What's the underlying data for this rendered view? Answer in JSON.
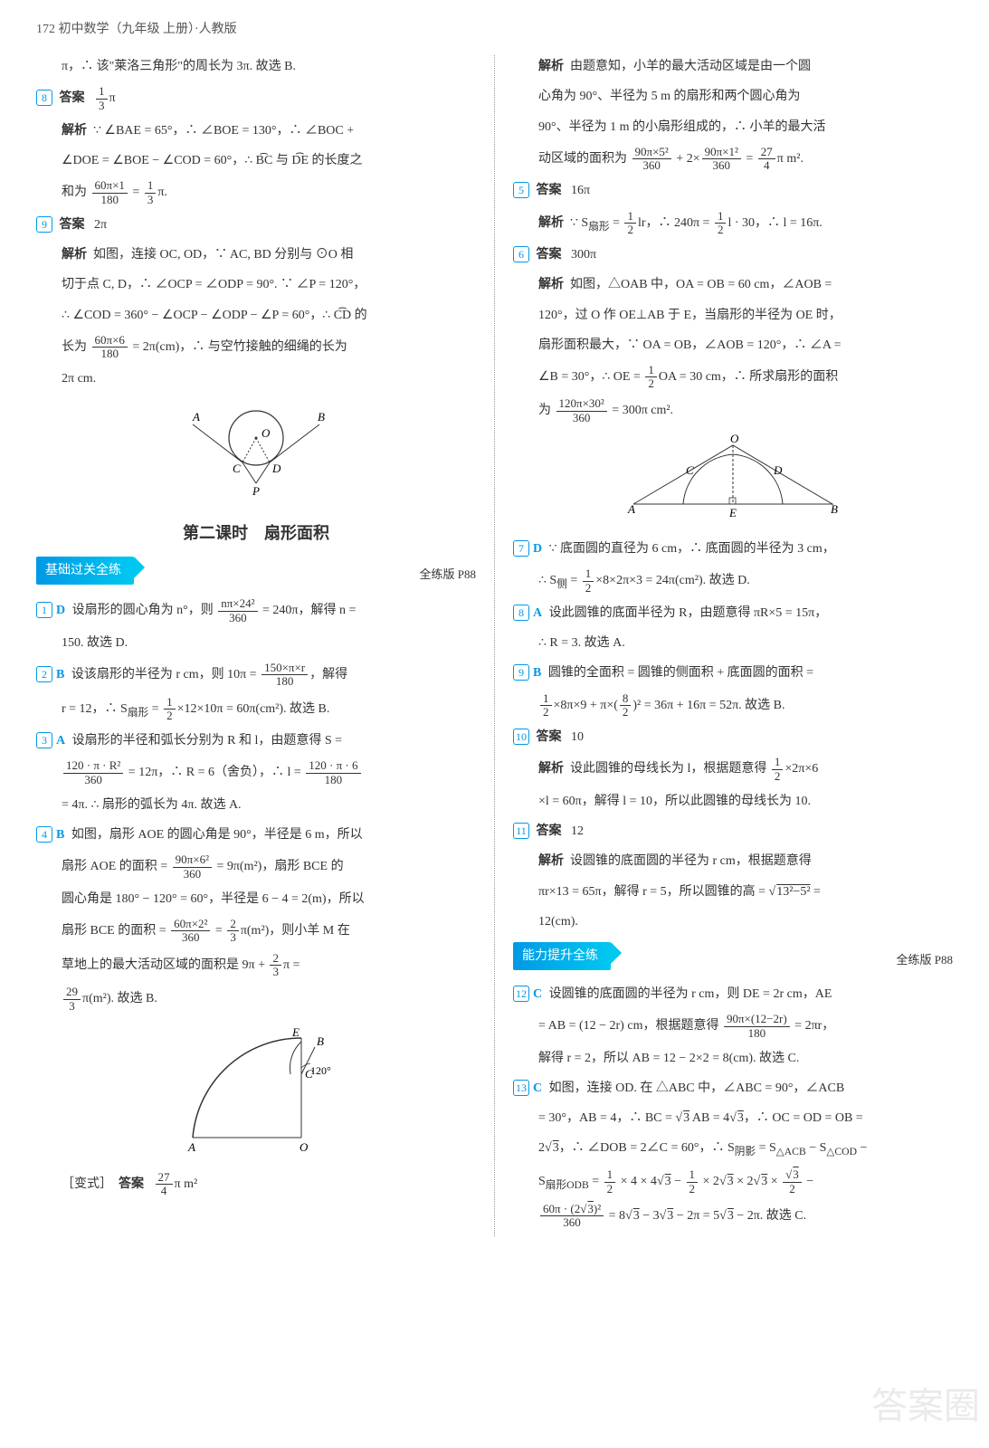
{
  "header": "172 初中数学（九年级 上册）·人教版",
  "colors": {
    "accent": "#0099e5",
    "text": "#333333",
    "banner_gradient_start": "#0099e5",
    "banner_gradient_end": "#00c8f0"
  },
  "left": {
    "intro_line": "π，∴ 该\"莱洛三角形\"的周长为 3π. 故选 B.",
    "q8": {
      "num": "8",
      "ans_label": "答案",
      "ans_value_html": "<span class='frac'><span class='num'>1</span><span class='den'>3</span></span>π",
      "exp_label": "解析",
      "exp_line1": "∵ ∠BAE = 65°，∴ ∠BOE = 130°，∴ ∠BOC +",
      "exp_line2": "∠DOE = ∠BOE − ∠COD = 60°，∴ B͡C 与 D͡E 的长度之",
      "exp_line3_html": "和为 <span class='frac'><span class='num'>60π×1</span><span class='den'>180</span></span> = <span class='frac'><span class='num'>1</span><span class='den'>3</span></span>π."
    },
    "q9": {
      "num": "9",
      "ans_label": "答案",
      "ans_value": "2π",
      "exp_label": "解析",
      "exp_l1": "如图，连接 OC, OD，∵ AC, BD 分别与 ⊙O 相",
      "exp_l2": "切于点 C, D，∴ ∠OCP = ∠ODP = 90°. ∵ ∠P = 120°，",
      "exp_l3": "∴ ∠COD = 360° − ∠OCP − ∠ODP − ∠P = 60°，∴ C͡D 的",
      "exp_l4_html": "长为 <span class='frac'><span class='num'>60π×6</span><span class='den'>180</span></span> = 2π(cm)，∴ 与空竹接触的细绳的长为",
      "exp_l5": "2π cm."
    },
    "fig1": {
      "labels": {
        "A": "A",
        "B": "B",
        "C": "C",
        "D": "D",
        "O": "O",
        "P": "P"
      }
    },
    "section_title": "第二课时　扇形面积",
    "banner1": "基础过关全练",
    "page_ref1": "全练版 P88",
    "q1": {
      "num": "1",
      "choice": "D",
      "l1_html": "设扇形的圆心角为 n°，则 <span class='frac'><span class='num'>nπ×24²</span><span class='den'>360</span></span> = 240π，解得 n =",
      "l2": "150. 故选 D."
    },
    "q2": {
      "num": "2",
      "choice": "B",
      "l1_html": "设该扇形的半径为 r cm，则 10π = <span class='frac'><span class='num'>150×π×r</span><span class='den'>180</span></span>，解得",
      "l2_html": "r = 12，∴ S<sub>扇形</sub> = <span class='frac'><span class='num'>1</span><span class='den'>2</span></span>×12×10π = 60π(cm²). 故选 B."
    },
    "q3": {
      "num": "3",
      "choice": "A",
      "l1": "设扇形的半径和弧长分别为 R 和 l，由题意得 S =",
      "l2_html": "<span class='frac'><span class='num'>120 · π · R²</span><span class='den'>360</span></span> = 12π，∴ R = 6（舍负），∴ l = <span class='frac'><span class='num'>120 · π · 6</span><span class='den'>180</span></span>",
      "l3": "= 4π. ∴ 扇形的弧长为 4π. 故选 A."
    },
    "q4": {
      "num": "4",
      "choice": "B",
      "l1": "如图，扇形 AOE 的圆心角是 90°，半径是 6 m，所以",
      "l2_html": "扇形 AOE 的面积 = <span class='frac'><span class='num'>90π×6²</span><span class='den'>360</span></span> = 9π(m²)，扇形 BCE 的",
      "l3": "圆心角是 180° − 120° = 60°，半径是 6 − 4 = 2(m)，所以",
      "l4_html": "扇形 BCE 的面积 = <span class='frac'><span class='num'>60π×2²</span><span class='den'>360</span></span> = <span class='frac'><span class='num'>2</span><span class='den'>3</span></span>π(m²)，则小羊 M 在",
      "l5_html": "草地上的最大活动区域的面积是 9π + <span class='frac'><span class='num'>2</span><span class='den'>3</span></span>π =",
      "l6_html": "<span class='frac'><span class='num'>29</span><span class='den'>3</span></span>π(m²). 故选 B."
    },
    "fig2": {
      "labels": {
        "A": "A",
        "O": "O",
        "B": "B",
        "C": "C",
        "E": "E",
        "angle": "120°"
      }
    },
    "variant_label": "［变式］",
    "variant_ans_label": "答案",
    "variant_ans_html": "<span class='frac'><span class='num'>27</span><span class='den'>4</span></span>π m²"
  },
  "right": {
    "intro_exp_label": "解析",
    "intro_l1": "由题意知，小羊的最大活动区域是由一个圆",
    "intro_l2": "心角为 90°、半径为 5 m 的扇形和两个圆心角为",
    "intro_l3": "90°、半径为 1 m 的小扇形组成的，∴ 小羊的最大活",
    "intro_l4_html": "动区域的面积为 <span class='frac'><span class='num'>90π×5²</span><span class='den'>360</span></span> + 2×<span class='frac'><span class='num'>90π×1²</span><span class='den'>360</span></span> = <span class='frac'><span class='num'>27</span><span class='den'>4</span></span>π m².",
    "q5": {
      "num": "5",
      "ans_label": "答案",
      "ans_value": "16π",
      "exp_label": "解析",
      "exp_html": "∵ S<sub>扇形</sub> = <span class='frac'><span class='num'>1</span><span class='den'>2</span></span>lr，∴ 240π = <span class='frac'><span class='num'>1</span><span class='den'>2</span></span>l · 30，∴ l = 16π."
    },
    "q6": {
      "num": "6",
      "ans_label": "答案",
      "ans_value": "300π",
      "exp_label": "解析",
      "l1": "如图，△OAB 中，OA = OB = 60 cm，∠AOB =",
      "l2": "120°，过 O 作 OE⊥AB 于 E，当扇形的半径为 OE 时，",
      "l3": "扇形面积最大，∵ OA = OB，∠AOB = 120°，∴ ∠A =",
      "l4_html": "∠B = 30°，∴ OE = <span class='frac'><span class='num'>1</span><span class='den'>2</span></span>OA = 30 cm，∴ 所求扇形的面积",
      "l5_html": "为 <span class='frac'><span class='num'>120π×30²</span><span class='den'>360</span></span> = 300π cm²."
    },
    "fig3": {
      "labels": {
        "A": "A",
        "B": "B",
        "C": "C",
        "D": "D",
        "O": "O",
        "E": "E"
      }
    },
    "q7": {
      "num": "7",
      "choice": "D",
      "l1": "∵ 底面圆的直径为 6 cm，∴ 底面圆的半径为 3 cm，",
      "l2_html": "∴ S<sub>侧</sub> = <span class='frac'><span class='num'>1</span><span class='den'>2</span></span>×8×2π×3 = 24π(cm²). 故选 D."
    },
    "q8": {
      "num": "8",
      "choice": "A",
      "l1": "设此圆锥的底面半径为 R，由题意得 πR×5 = 15π，",
      "l2": "∴ R = 3. 故选 A."
    },
    "q9": {
      "num": "9",
      "choice": "B",
      "l1": "圆锥的全面积 = 圆锥的侧面积 + 底面圆的面积 =",
      "l2_html": "<span class='frac'><span class='num'>1</span><span class='den'>2</span></span>×8π×9 + π×(<span class='frac'><span class='num'>8</span><span class='den'>2</span></span>)² = 36π + 16π = 52π. 故选 B."
    },
    "q10": {
      "num": "10",
      "ans_label": "答案",
      "ans_value": "10",
      "exp_label": "解析",
      "l1_html": "设此圆锥的母线长为 l，根据题意得 <span class='frac'><span class='num'>1</span><span class='den'>2</span></span>×2π×6",
      "l2": "×l = 60π，解得 l = 10，所以此圆锥的母线长为 10."
    },
    "q11": {
      "num": "11",
      "ans_label": "答案",
      "ans_value": "12",
      "exp_label": "解析",
      "l1": "设圆锥的底面圆的半径为 r cm，根据题意得",
      "l2_html": "πr×13 = 65π，解得 r = 5，所以圆锥的高 = <span class='sqrt-sign'></span><span class='sqrt'>13²−5²</span> =",
      "l3": "12(cm)."
    },
    "banner2": "能力提升全练",
    "page_ref2": "全练版 P88",
    "q12": {
      "num": "12",
      "choice": "C",
      "l1": "设圆锥的底面圆的半径为 r cm，则 DE = 2r cm，AE",
      "l2_html": "= AB = (12 − 2r) cm，根据题意得 <span class='frac'><span class='num'>90π×(12−2r)</span><span class='den'>180</span></span> = 2πr，",
      "l3": "解得 r = 2，所以 AB = 12 − 2×2 = 8(cm). 故选 C."
    },
    "q13": {
      "num": "13",
      "choice": "C",
      "l1": "如图，连接 OD. 在 △ABC 中，∠ABC = 90°，∠ACB",
      "l2_html": "= 30°，AB = 4，∴ BC = <span class='sqrt-sign'></span><span class='sqrt'>3</span> AB = 4<span class='sqrt-sign'></span><span class='sqrt'>3</span>，∴ OC = OD = OB =",
      "l3_html": "2<span class='sqrt-sign'></span><span class='sqrt'>3</span>，∴ ∠DOB = 2∠C = 60°，∴ S<sub>阴影</sub> = S<sub>△ACB</sub> − S<sub>△COD</sub> −",
      "l4_html": "S<sub>扇形ODB</sub> = <span class='frac'><span class='num'>1</span><span class='den'>2</span></span> × 4 × 4<span class='sqrt-sign'></span><span class='sqrt'>3</span> − <span class='frac'><span class='num'>1</span><span class='den'>2</span></span> × 2<span class='sqrt-sign'></span><span class='sqrt'>3</span> × 2<span class='sqrt-sign'></span><span class='sqrt'>3</span> × <span class='frac'><span class='num'><span class='sqrt-sign'></span><span class='sqrt'>3</span></span><span class='den'>2</span></span> −",
      "l5_html": "<span class='frac'><span class='num'>60π · (2<span class='sqrt-sign'></span><span class='sqrt'>3</span>)²</span><span class='den'>360</span></span> = 8<span class='sqrt-sign'></span><span class='sqrt'>3</span> − 3<span class='sqrt-sign'></span><span class='sqrt'>3</span> − 2π = 5<span class='sqrt-sign'></span><span class='sqrt'>3</span> − 2π. 故选 C."
    }
  },
  "watermark": "答案圈"
}
